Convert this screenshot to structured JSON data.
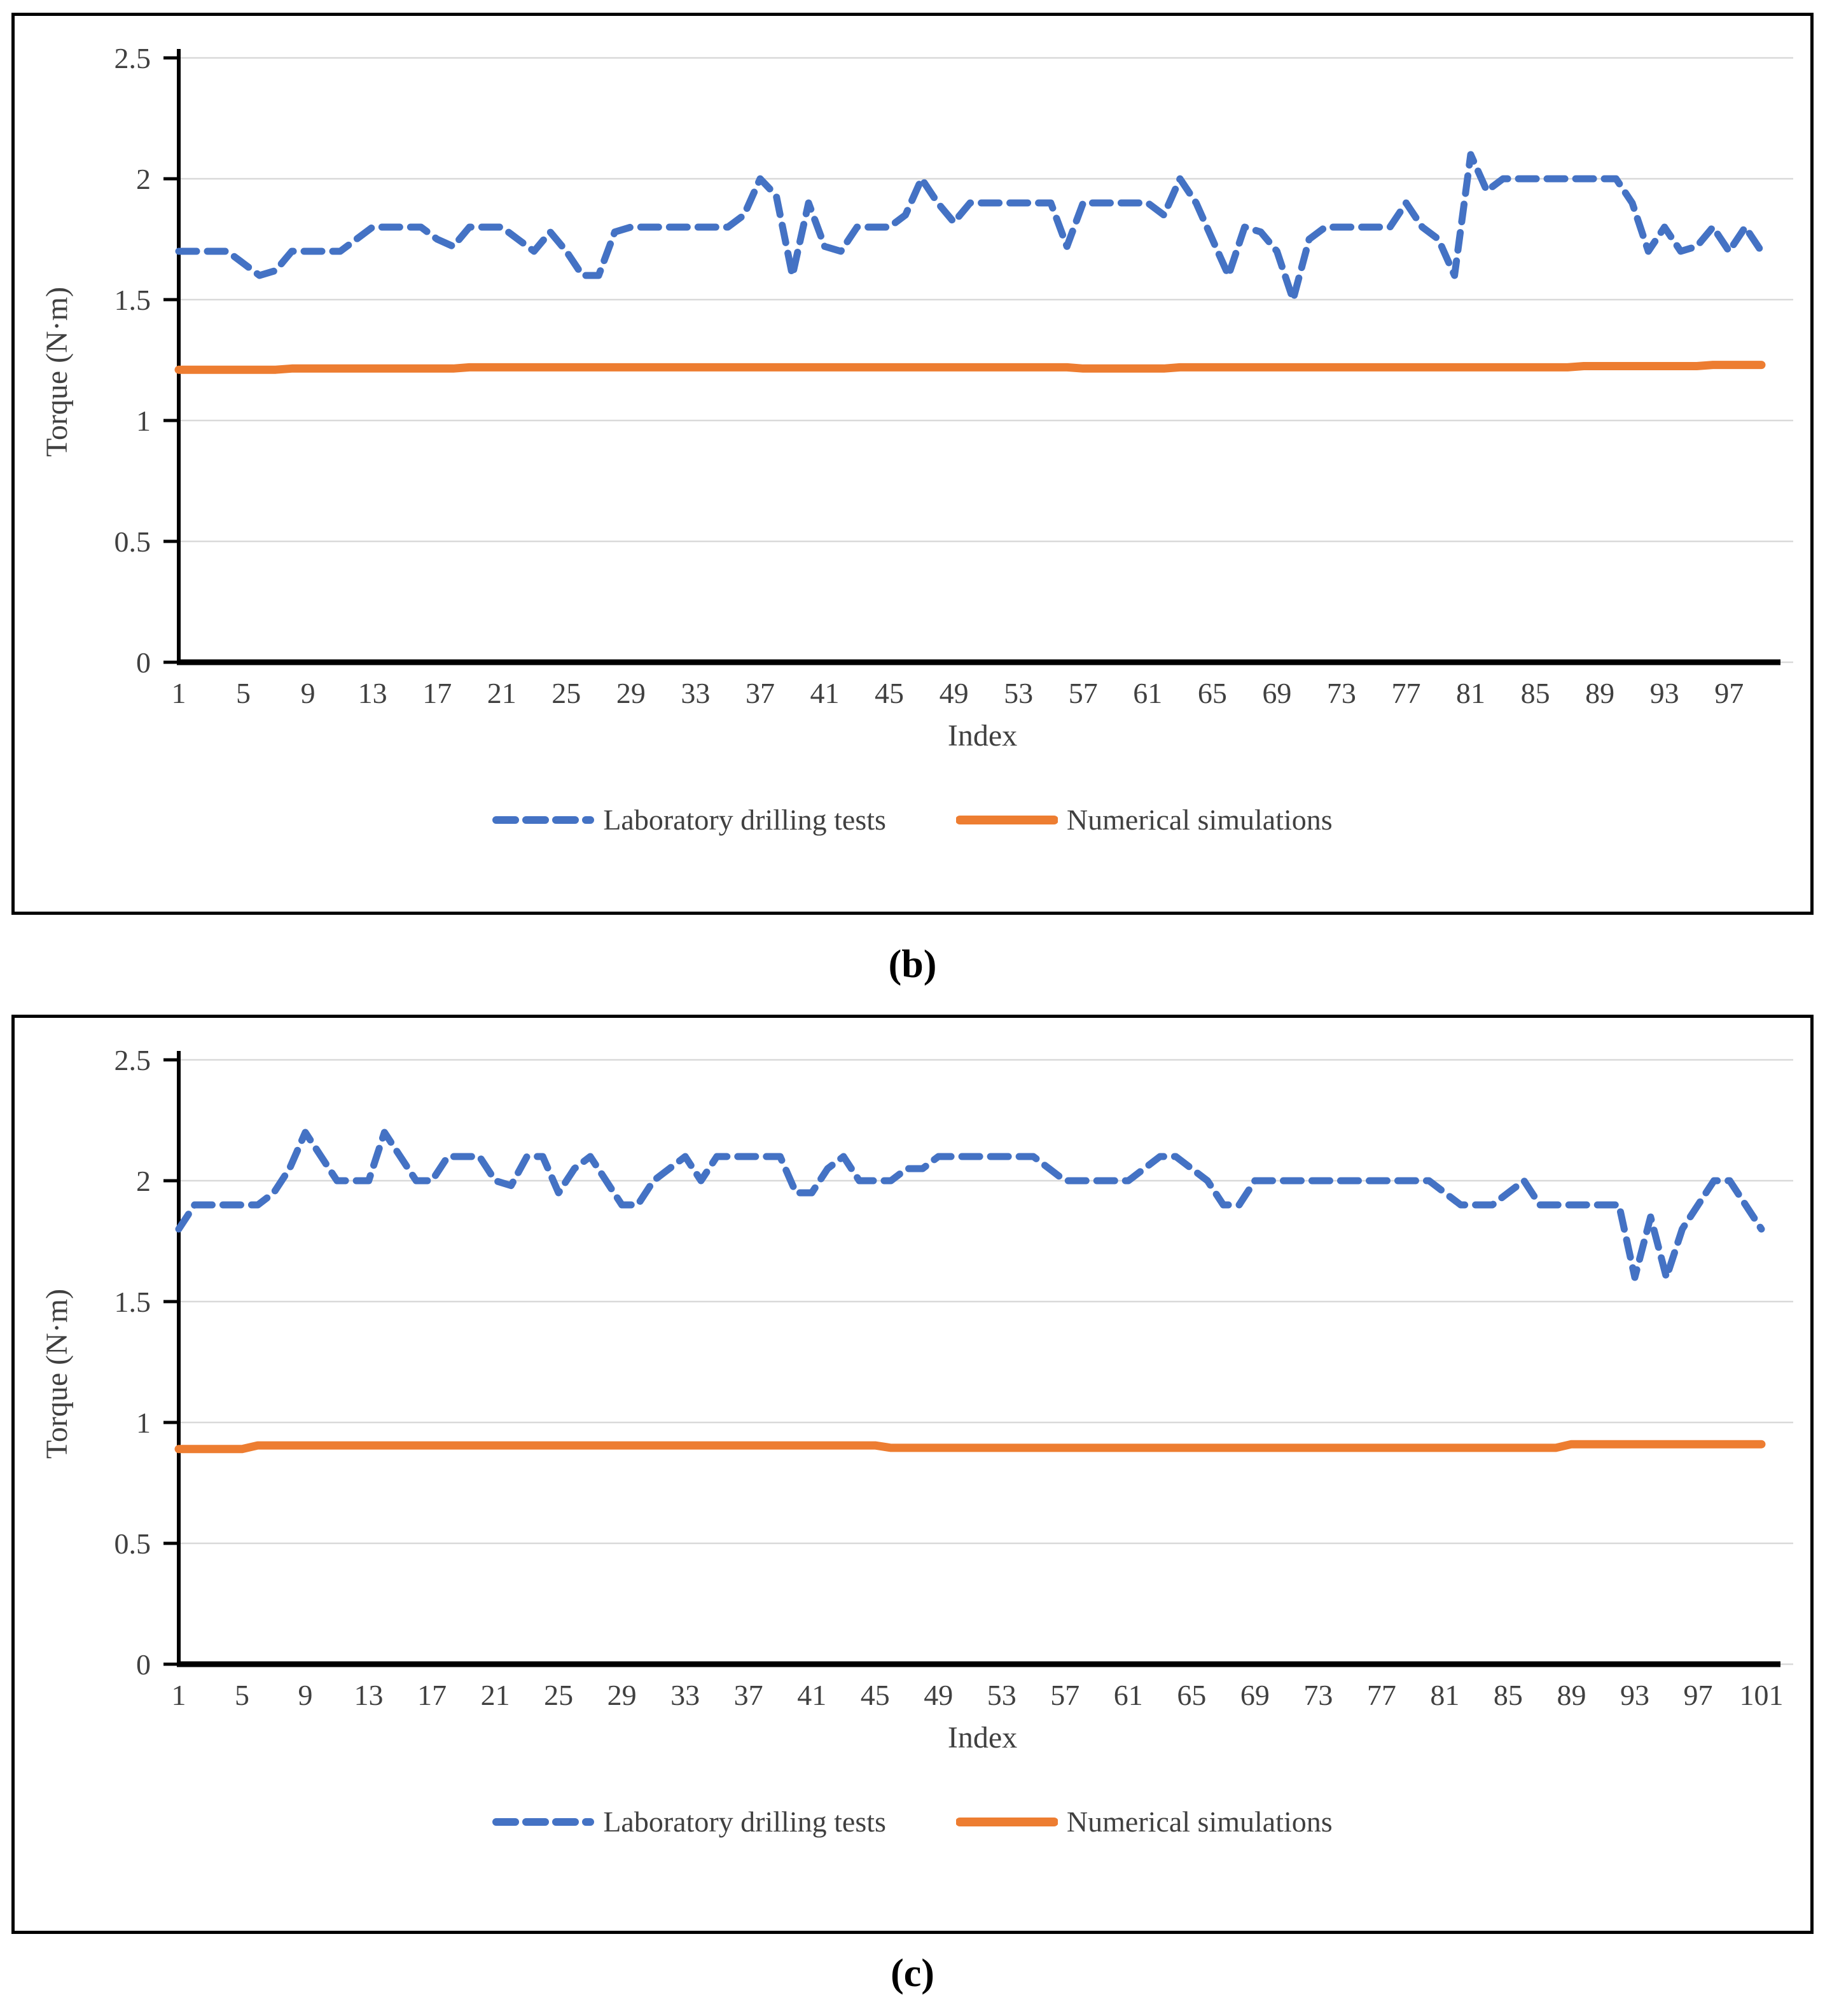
{
  "colors": {
    "lab_blue": "#4472C4",
    "sim_orange": "#ED7D31",
    "gridline": "#D9D9D9",
    "axis": "#000000",
    "tick_text": "#404040"
  },
  "legend": {
    "items": [
      {
        "label": "Laboratory drilling tests",
        "swatch": "blue-dashed-line"
      },
      {
        "label": "Numerical simulations",
        "swatch": "orange-solid-line"
      }
    ]
  },
  "chart_data": [
    {
      "type": "line",
      "title": "(b)",
      "xlabel": "Index",
      "ylabel": "Torque (N·m)",
      "ylim": [
        0,
        2.5
      ],
      "yticks": [
        0,
        0.5,
        1,
        1.5,
        2,
        2.5
      ],
      "ytick_labels": [
        "0",
        "0.5",
        "1",
        "1.5",
        "2",
        "2.5"
      ],
      "xticks": [
        1,
        5,
        9,
        13,
        17,
        21,
        25,
        29,
        33,
        37,
        41,
        45,
        49,
        53,
        57,
        61,
        65,
        69,
        73,
        77,
        81,
        85,
        89,
        93,
        97
      ],
      "x_start": 1,
      "x_step": 1,
      "n_points": 99,
      "grid": true,
      "legend_position": "bottom",
      "series": [
        {
          "name": "Laboratory drilling tests",
          "color": "#4472C4",
          "style": "dashed",
          "values": [
            1.7,
            1.7,
            1.7,
            1.7,
            1.65,
            1.6,
            1.62,
            1.7,
            1.7,
            1.7,
            1.7,
            1.75,
            1.8,
            1.8,
            1.8,
            1.8,
            1.75,
            1.72,
            1.8,
            1.8,
            1.8,
            1.75,
            1.7,
            1.78,
            1.7,
            1.6,
            1.6,
            1.78,
            1.8,
            1.8,
            1.8,
            1.8,
            1.8,
            1.8,
            1.8,
            1.85,
            2,
            1.93,
            1.6,
            1.9,
            1.72,
            1.7,
            1.8,
            1.8,
            1.8,
            1.85,
            2,
            1.9,
            1.82,
            1.9,
            1.9,
            1.9,
            1.9,
            1.9,
            1.9,
            1.72,
            1.9,
            1.9,
            1.9,
            1.9,
            1.9,
            1.85,
            2,
            1.9,
            1.75,
            1.6,
            1.8,
            1.78,
            1.7,
            1.5,
            1.75,
            1.8,
            1.8,
            1.8,
            1.8,
            1.8,
            1.9,
            1.8,
            1.75,
            1.6,
            2.1,
            1.95,
            2,
            2,
            2,
            2,
            2,
            2,
            2,
            2,
            1.9,
            1.7,
            1.8,
            1.7,
            1.72,
            1.8,
            1.7,
            1.8,
            1.7
          ]
        },
        {
          "name": "Numerical simulations",
          "color": "#ED7D31",
          "style": "solid",
          "values": [
            1.21,
            1.21,
            1.21,
            1.21,
            1.21,
            1.21,
            1.21,
            1.215,
            1.215,
            1.215,
            1.215,
            1.215,
            1.215,
            1.215,
            1.215,
            1.215,
            1.215,
            1.215,
            1.22,
            1.22,
            1.22,
            1.22,
            1.22,
            1.22,
            1.22,
            1.22,
            1.22,
            1.22,
            1.22,
            1.22,
            1.22,
            1.22,
            1.22,
            1.22,
            1.22,
            1.22,
            1.22,
            1.22,
            1.22,
            1.22,
            1.22,
            1.22,
            1.22,
            1.22,
            1.22,
            1.22,
            1.22,
            1.22,
            1.22,
            1.22,
            1.22,
            1.22,
            1.22,
            1.22,
            1.22,
            1.22,
            1.215,
            1.215,
            1.215,
            1.215,
            1.215,
            1.215,
            1.22,
            1.22,
            1.22,
            1.22,
            1.22,
            1.22,
            1.22,
            1.22,
            1.22,
            1.22,
            1.22,
            1.22,
            1.22,
            1.22,
            1.22,
            1.22,
            1.22,
            1.22,
            1.22,
            1.22,
            1.22,
            1.22,
            1.22,
            1.22,
            1.22,
            1.225,
            1.225,
            1.225,
            1.225,
            1.225,
            1.225,
            1.225,
            1.225,
            1.23,
            1.23,
            1.23,
            1.23
          ]
        }
      ]
    },
    {
      "type": "line",
      "title": "(c)",
      "xlabel": "Index",
      "ylabel": "Torque (N·m)",
      "ylim": [
        0,
        2.5
      ],
      "yticks": [
        0,
        0.5,
        1,
        1.5,
        2,
        2.5
      ],
      "ytick_labels": [
        "0",
        "0.5",
        "1",
        "1.5",
        "2",
        "2.5"
      ],
      "xticks": [
        1,
        5,
        9,
        13,
        17,
        21,
        25,
        29,
        33,
        37,
        41,
        45,
        49,
        53,
        57,
        61,
        65,
        69,
        73,
        77,
        81,
        85,
        89,
        93,
        97,
        101
      ],
      "x_start": 1,
      "x_step": 1,
      "n_points": 101,
      "grid": true,
      "legend_position": "bottom",
      "series": [
        {
          "name": "Laboratory drilling tests",
          "color": "#4472C4",
          "style": "dashed",
          "values": [
            1.8,
            1.9,
            1.9,
            1.9,
            1.9,
            1.9,
            1.95,
            2.05,
            2.2,
            2.1,
            2,
            2,
            2,
            2.2,
            2.1,
            2,
            2,
            2.1,
            2.1,
            2.1,
            2,
            1.98,
            2.1,
            2.1,
            1.95,
            2.05,
            2.1,
            2,
            1.9,
            1.9,
            2,
            2.05,
            2.1,
            2,
            2.1,
            2.1,
            2.1,
            2.1,
            2.1,
            1.95,
            1.95,
            2.05,
            2.1,
            2,
            2,
            2,
            2.05,
            2.05,
            2.1,
            2.1,
            2.1,
            2.1,
            2.1,
            2.1,
            2.1,
            2.05,
            2,
            2,
            2,
            2,
            2,
            2.05,
            2.1,
            2.1,
            2.05,
            2,
            1.9,
            1.9,
            2,
            2,
            2,
            2,
            2,
            2,
            2,
            2,
            2,
            2,
            2,
            2,
            1.95,
            1.9,
            1.9,
            1.9,
            1.95,
            2,
            1.9,
            1.9,
            1.9,
            1.9,
            1.9,
            1.9,
            1.6,
            1.85,
            1.6,
            1.8,
            1.9,
            2,
            2,
            1.9,
            1.8
          ]
        },
        {
          "name": "Numerical simulations",
          "color": "#ED7D31",
          "style": "solid",
          "values": [
            0.89,
            0.89,
            0.89,
            0.89,
            0.89,
            0.905,
            0.905,
            0.905,
            0.905,
            0.905,
            0.905,
            0.905,
            0.905,
            0.905,
            0.905,
            0.905,
            0.905,
            0.905,
            0.905,
            0.905,
            0.905,
            0.905,
            0.905,
            0.905,
            0.905,
            0.905,
            0.905,
            0.905,
            0.905,
            0.905,
            0.905,
            0.905,
            0.905,
            0.905,
            0.905,
            0.905,
            0.905,
            0.905,
            0.905,
            0.905,
            0.905,
            0.905,
            0.905,
            0.905,
            0.905,
            0.895,
            0.895,
            0.895,
            0.895,
            0.895,
            0.895,
            0.895,
            0.895,
            0.895,
            0.895,
            0.895,
            0.895,
            0.895,
            0.895,
            0.895,
            0.895,
            0.895,
            0.895,
            0.895,
            0.895,
            0.895,
            0.895,
            0.895,
            0.895,
            0.895,
            0.895,
            0.895,
            0.895,
            0.895,
            0.895,
            0.895,
            0.895,
            0.895,
            0.895,
            0.895,
            0.895,
            0.895,
            0.895,
            0.895,
            0.895,
            0.895,
            0.895,
            0.895,
            0.91,
            0.91,
            0.91,
            0.91,
            0.91,
            0.91,
            0.91,
            0.91,
            0.91,
            0.91,
            0.91,
            0.91,
            0.91
          ]
        }
      ]
    }
  ]
}
